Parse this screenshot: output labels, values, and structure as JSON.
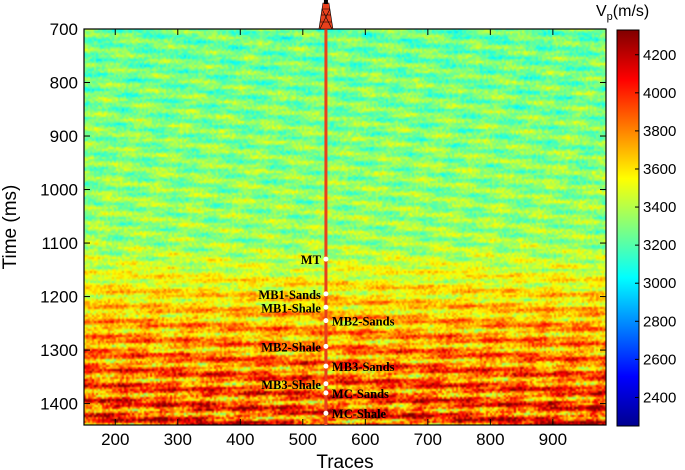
{
  "chart_data": {
    "type": "heatmap",
    "title": "",
    "xlabel": "Traces",
    "ylabel": "Time (ms)",
    "xlim": [
      150,
      985
    ],
    "ylim": [
      700,
      1440
    ],
    "y_reversed": true,
    "xticks": [
      200,
      300,
      400,
      500,
      600,
      700,
      800,
      900
    ],
    "yticks": [
      700,
      800,
      900,
      1000,
      1100,
      1200,
      1300,
      1400
    ],
    "colorbar": {
      "title_main": "V",
      "title_sub": "p",
      "title_unit": "(m/s)",
      "range": [
        2250,
        4330
      ],
      "ticks": [
        2400,
        2600,
        2800,
        3000,
        3200,
        3400,
        3600,
        3800,
        4000,
        4200
      ],
      "colormap": "jet"
    },
    "well": {
      "trace": 537,
      "color": "#e8401c",
      "markers": [
        {
          "name": "MT",
          "time": 1130,
          "side": "left"
        },
        {
          "name": "MB1-Sands",
          "time": 1195,
          "side": "left"
        },
        {
          "name": "MB1-Shale",
          "time": 1220,
          "side": "left"
        },
        {
          "name": "MB2-Sands",
          "time": 1245,
          "side": "right"
        },
        {
          "name": "MB2-Shale",
          "time": 1293,
          "side": "left"
        },
        {
          "name": "MB3-Sands",
          "time": 1330,
          "side": "right"
        },
        {
          "name": "MB3-Shale",
          "time": 1363,
          "side": "left"
        },
        {
          "name": "MC-Sands",
          "time": 1380,
          "side": "right"
        },
        {
          "name": "MC-Shale",
          "time": 1418,
          "side": "right"
        }
      ]
    },
    "velocity_trend": [
      {
        "time": 700,
        "vp": 3250
      },
      {
        "time": 900,
        "vp": 3300
      },
      {
        "time": 1100,
        "vp": 3350
      },
      {
        "time": 1180,
        "vp": 3550
      },
      {
        "time": 1250,
        "vp": 3700
      },
      {
        "time": 1350,
        "vp": 3850
      },
      {
        "time": 1440,
        "vp": 3950
      }
    ]
  }
}
